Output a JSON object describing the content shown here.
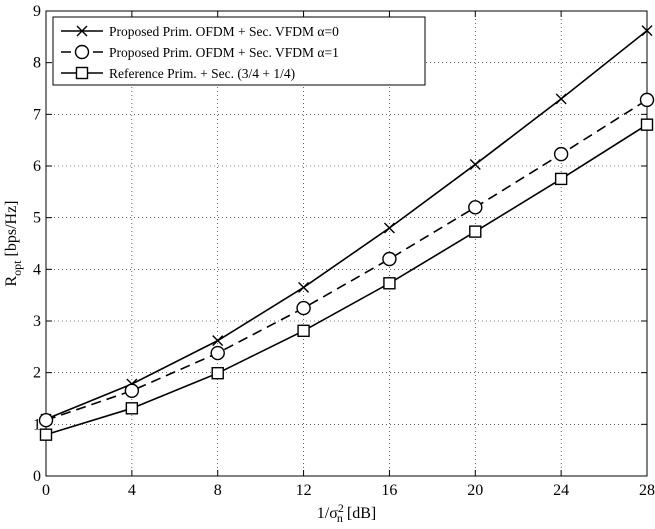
{
  "chart_data": {
    "type": "line",
    "xlabel_main": "1/σ",
    "xlabel_sup": "2",
    "xlabel_sub": "n",
    "xlabel_tail": " [dB]",
    "ylabel_main": "R",
    "ylabel_sub": "opt",
    "ylabel_tail": " [bps/Hz]",
    "xlim": [
      0,
      28
    ],
    "ylim": [
      0,
      9
    ],
    "xticks": [
      0,
      4,
      8,
      12,
      16,
      20,
      24,
      28
    ],
    "yticks": [
      0,
      1,
      2,
      3,
      4,
      5,
      6,
      7,
      8,
      9
    ],
    "grid": true,
    "legend_position": "top-left",
    "x": [
      0,
      4,
      8,
      12,
      16,
      20,
      24,
      28
    ],
    "series": [
      {
        "name": "Proposed Prim. OFDM + Sec. VFDM α=0",
        "marker": "x",
        "line": "solid",
        "values": [
          1.1,
          1.78,
          2.62,
          3.65,
          4.8,
          6.03,
          7.3,
          8.62
        ]
      },
      {
        "name": "Proposed Prim. OFDM + Sec. VFDM α=1",
        "marker": "circle",
        "line": "dashed",
        "values": [
          1.08,
          1.65,
          2.38,
          3.25,
          4.2,
          5.2,
          6.23,
          7.28
        ]
      },
      {
        "name": "Reference Prim. + Sec. (3/4 + 1/4)",
        "marker": "square",
        "line": "solid",
        "values": [
          0.8,
          1.31,
          1.99,
          2.81,
          3.73,
          4.73,
          5.75,
          6.8
        ]
      }
    ]
  }
}
